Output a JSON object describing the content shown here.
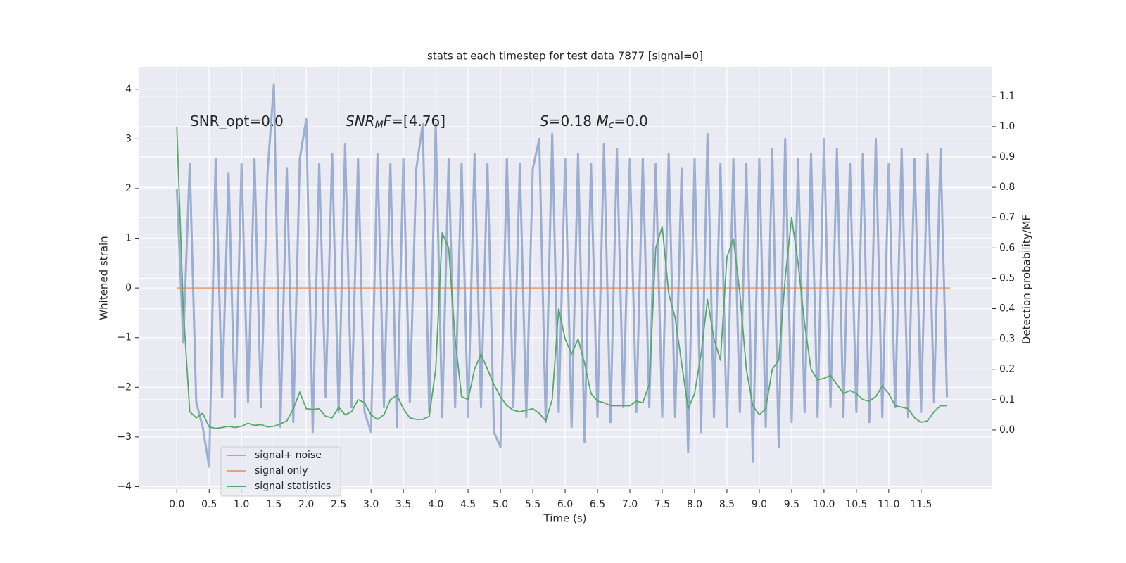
{
  "chart_data": {
    "type": "line",
    "title": "stats at each timestep for test data 7877 [signal=0]",
    "xlabel": "Time (s)",
    "ylabel": "Whitened strain",
    "y2label": "Detection probability/MF",
    "annotations": [
      [
        {
          "t": "SNR_opt=0.0"
        }
      ],
      [
        {
          "t": "SNR",
          "italic": true
        },
        {
          "t": "M",
          "italic": true,
          "sub": true
        },
        {
          "t": "F",
          "italic": true
        },
        {
          "t": "=[4.76]"
        }
      ],
      [
        {
          "t": "S",
          "italic": true
        },
        {
          "t": "=0.18   "
        },
        {
          "t": "M",
          "italic": true
        },
        {
          "t": "c",
          "italic": true,
          "sub": true
        },
        {
          "t": "=0.0"
        }
      ]
    ],
    "x": [
      0.0,
      0.1,
      0.2,
      0.3,
      0.4,
      0.5,
      0.6,
      0.7,
      0.8,
      0.9,
      1.0,
      1.1,
      1.2,
      1.3,
      1.4,
      1.5,
      1.6,
      1.7,
      1.8,
      1.9,
      2.0,
      2.1,
      2.2,
      2.3,
      2.4,
      2.5,
      2.6,
      2.7,
      2.8,
      2.9,
      3.0,
      3.1,
      3.2,
      3.3,
      3.4,
      3.5,
      3.6,
      3.7,
      3.8,
      3.9,
      4.0,
      4.1,
      4.2,
      4.3,
      4.4,
      4.5,
      4.6,
      4.7,
      4.8,
      4.9,
      5.0,
      5.1,
      5.2,
      5.3,
      5.4,
      5.5,
      5.6,
      5.7,
      5.8,
      5.9,
      6.0,
      6.1,
      6.2,
      6.3,
      6.4,
      6.5,
      6.6,
      6.7,
      6.8,
      6.9,
      7.0,
      7.1,
      7.2,
      7.3,
      7.4,
      7.5,
      7.6,
      7.7,
      7.8,
      7.9,
      8.0,
      8.1,
      8.2,
      8.3,
      8.4,
      8.5,
      8.6,
      8.7,
      8.8,
      8.9,
      9.0,
      9.1,
      9.2,
      9.3,
      9.4,
      9.5,
      9.6,
      9.7,
      9.8,
      9.9,
      10.0,
      10.1,
      10.2,
      10.3,
      10.4,
      10.5,
      10.6,
      10.7,
      10.8,
      10.9,
      11.0,
      11.1,
      11.2,
      11.3,
      11.4,
      11.5,
      11.6,
      11.7,
      11.8,
      11.9
    ],
    "series": [
      {
        "name": "signal+ noise",
        "color": "#4c72b0",
        "opacity": 0.5,
        "axis": "y",
        "values": [
          2.0,
          -1.1,
          2.5,
          -2.3,
          -2.8,
          -3.6,
          2.6,
          -2.2,
          2.3,
          -2.6,
          2.5,
          -2.3,
          2.6,
          -2.4,
          2.3,
          4.1,
          -2.8,
          2.4,
          -2.7,
          2.6,
          3.4,
          -2.9,
          2.5,
          -2.2,
          2.7,
          -2.5,
          2.9,
          -2.4,
          2.6,
          -2.5,
          -2.9,
          2.7,
          -2.4,
          2.5,
          -2.8,
          2.6,
          -2.3,
          2.4,
          3.3,
          -2.5,
          3.3,
          -2.6,
          2.6,
          -2.4,
          2.5,
          -2.6,
          2.7,
          -2.4,
          2.5,
          -2.9,
          -3.2,
          2.6,
          -2.4,
          2.5,
          -2.6,
          2.4,
          3.0,
          -2.7,
          3.1,
          -2.5,
          2.6,
          -2.8,
          2.7,
          -3.1,
          2.5,
          -2.6,
          2.9,
          -2.7,
          2.8,
          -2.4,
          2.6,
          -2.5,
          2.6,
          -2.4,
          2.5,
          -2.6,
          2.7,
          -2.6,
          2.4,
          -3.3,
          2.6,
          -2.9,
          3.1,
          -2.6,
          2.5,
          -2.8,
          2.6,
          -2.5,
          2.5,
          -3.5,
          2.6,
          -2.8,
          2.8,
          -3.2,
          3.0,
          -2.7,
          2.6,
          -2.5,
          2.7,
          -2.6,
          3.0,
          -2.4,
          2.8,
          -2.6,
          2.5,
          -2.5,
          2.7,
          -2.7,
          3.0,
          -2.6,
          2.5,
          -2.4,
          2.8,
          -2.6,
          2.6,
          -2.5,
          2.7,
          -2.3,
          2.8,
          -2.2
        ]
      },
      {
        "name": "signal only",
        "color": "#dd8452",
        "opacity": 0.7,
        "axis": "y",
        "x": [
          0.0,
          11.95
        ],
        "values": [
          0,
          0
        ]
      },
      {
        "name": "signal statistics",
        "color": "#55a868",
        "opacity": 1,
        "axis": "y2",
        "values": [
          1.0,
          0.4,
          0.06,
          0.04,
          0.055,
          0.01,
          0.005,
          0.008,
          0.012,
          0.008,
          0.012,
          0.022,
          0.015,
          0.018,
          0.01,
          0.012,
          0.02,
          0.03,
          0.07,
          0.125,
          0.07,
          0.068,
          0.07,
          0.045,
          0.04,
          0.075,
          0.05,
          0.06,
          0.1,
          0.09,
          0.05,
          0.035,
          0.05,
          0.1,
          0.115,
          0.07,
          0.04,
          0.035,
          0.035,
          0.045,
          0.2,
          0.65,
          0.6,
          0.3,
          0.11,
          0.1,
          0.2,
          0.25,
          0.2,
          0.15,
          0.11,
          0.08,
          0.065,
          0.06,
          0.065,
          0.07,
          0.055,
          0.03,
          0.1,
          0.4,
          0.3,
          0.25,
          0.3,
          0.22,
          0.12,
          0.095,
          0.09,
          0.08,
          0.08,
          0.08,
          0.08,
          0.095,
          0.09,
          0.15,
          0.6,
          0.67,
          0.45,
          0.37,
          0.22,
          0.07,
          0.12,
          0.25,
          0.43,
          0.3,
          0.23,
          0.57,
          0.63,
          0.45,
          0.2,
          0.08,
          0.05,
          0.07,
          0.2,
          0.23,
          0.5,
          0.7,
          0.55,
          0.35,
          0.2,
          0.165,
          0.17,
          0.18,
          0.15,
          0.12,
          0.13,
          0.12,
          0.1,
          0.095,
          0.11,
          0.145,
          0.12,
          0.08,
          0.075,
          0.07,
          0.04,
          0.025,
          0.03,
          0.06,
          0.08,
          0.08
        ]
      }
    ],
    "xlim": [
      -0.59,
      12.6
    ],
    "ylim": [
      -4.05,
      4.45
    ],
    "y2lim": [
      -0.195,
      1.197
    ],
    "xticks": [
      {
        "value": 0,
        "label": "0.0"
      },
      0.5,
      {
        "value": 1,
        "label": "1.0"
      },
      1.5,
      {
        "value": 2,
        "label": "2.0"
      },
      2.5,
      {
        "value": 3,
        "label": "3.0"
      },
      3.5,
      {
        "value": 4,
        "label": "4.0"
      },
      4.5,
      {
        "value": 5,
        "label": "5.0"
      },
      5.5,
      {
        "value": 6,
        "label": "6.0"
      },
      6.5,
      {
        "value": 7,
        "label": "7.0"
      },
      7.5,
      {
        "value": 8,
        "label": "8.0"
      },
      8.5,
      {
        "value": 9,
        "label": "9.0"
      },
      9.5,
      {
        "value": 10,
        "label": "10.0"
      },
      10.5,
      {
        "value": 11,
        "label": "11.0"
      },
      11.5
    ],
    "yticks": [
      {
        "value": -4,
        "label": "−4"
      },
      {
        "value": -3,
        "label": "−3"
      },
      {
        "value": -2,
        "label": "−2"
      },
      {
        "value": -1,
        "label": "−1"
      },
      0,
      1,
      2,
      3,
      4
    ],
    "y2ticks": [
      {
        "value": 0,
        "label": "0.0"
      },
      0.1,
      0.2,
      0.3,
      0.4,
      0.5,
      0.6,
      0.7,
      0.8,
      0.9,
      {
        "value": 1,
        "label": "1.0"
      },
      1.1
    ],
    "grid": true,
    "legend": "lower left"
  }
}
